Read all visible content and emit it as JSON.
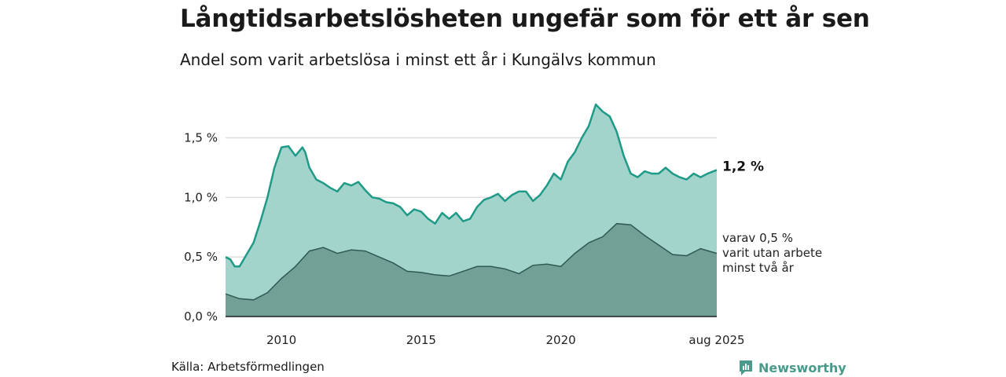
{
  "title": "Långtidsarbetslösheten ungefär som för ett år sen",
  "subtitle": "Andel som varit arbetslösa i minst ett år i Kungälvs kommun",
  "source": "Källa: Arbetsförmedlingen",
  "brand": "Newsworthy",
  "colors": {
    "area_main": "#a2d4cc",
    "line_main": "#1f9a87",
    "area_sub": "#72a096",
    "line_sub": "#2f5a50",
    "grid": "#dddddd"
  },
  "chart_data": {
    "type": "area",
    "xlim": [
      2008.0,
      2025.58
    ],
    "ylim": [
      0,
      1.8
    ],
    "yticks": [
      0,
      0.5,
      1.0,
      1.5
    ],
    "ytick_labels": [
      "0,0 %",
      "0,5 %",
      "1,0 %",
      "1,5 %"
    ],
    "xticks": [
      2010,
      2015,
      2020,
      2025.58
    ],
    "xtick_labels": [
      "2010",
      "2015",
      "2020",
      "aug 2025"
    ],
    "last_label": "1,2 %",
    "sub_label_lines": [
      "varav 0,5 %",
      "varit utan arbete",
      "minst två år"
    ],
    "series": [
      {
        "name": "minst ett år",
        "x": [
          2008.0,
          2008.17,
          2008.33,
          2008.5,
          2008.75,
          2009.0,
          2009.25,
          2009.5,
          2009.75,
          2010.0,
          2010.25,
          2010.5,
          2010.75,
          2010.85,
          2011.0,
          2011.25,
          2011.5,
          2011.75,
          2012.0,
          2012.25,
          2012.5,
          2012.75,
          2013.0,
          2013.25,
          2013.5,
          2013.75,
          2014.0,
          2014.25,
          2014.5,
          2014.75,
          2015.0,
          2015.25,
          2015.5,
          2015.75,
          2016.0,
          2016.25,
          2016.5,
          2016.75,
          2017.0,
          2017.25,
          2017.5,
          2017.75,
          2018.0,
          2018.25,
          2018.5,
          2018.75,
          2019.0,
          2019.25,
          2019.5,
          2019.75,
          2020.0,
          2020.25,
          2020.5,
          2020.75,
          2021.0,
          2021.25,
          2021.5,
          2021.75,
          2022.0,
          2022.25,
          2022.5,
          2022.75,
          2023.0,
          2023.25,
          2023.5,
          2023.75,
          2024.0,
          2024.25,
          2024.5,
          2024.75,
          2025.0,
          2025.25,
          2025.58
        ],
        "values": [
          0.5,
          0.48,
          0.42,
          0.42,
          0.52,
          0.62,
          0.8,
          1.0,
          1.25,
          1.42,
          1.43,
          1.35,
          1.42,
          1.38,
          1.25,
          1.15,
          1.12,
          1.08,
          1.05,
          1.12,
          1.1,
          1.13,
          1.06,
          1.0,
          0.99,
          0.96,
          0.95,
          0.92,
          0.85,
          0.9,
          0.88,
          0.82,
          0.78,
          0.87,
          0.82,
          0.87,
          0.8,
          0.82,
          0.92,
          0.98,
          1.0,
          1.03,
          0.97,
          1.02,
          1.05,
          1.05,
          0.97,
          1.02,
          1.1,
          1.2,
          1.15,
          1.3,
          1.38,
          1.5,
          1.6,
          1.78,
          1.72,
          1.68,
          1.55,
          1.35,
          1.2,
          1.17,
          1.22,
          1.2,
          1.2,
          1.25,
          1.2,
          1.17,
          1.15,
          1.2,
          1.17,
          1.2,
          1.23
        ]
      },
      {
        "name": "minst två år",
        "x": [
          2008.0,
          2008.5,
          2009.0,
          2009.5,
          2010.0,
          2010.5,
          2011.0,
          2011.5,
          2012.0,
          2012.5,
          2013.0,
          2013.5,
          2014.0,
          2014.5,
          2015.0,
          2015.5,
          2016.0,
          2016.5,
          2017.0,
          2017.5,
          2018.0,
          2018.5,
          2019.0,
          2019.5,
          2020.0,
          2020.5,
          2021.0,
          2021.5,
          2022.0,
          2022.5,
          2023.0,
          2023.5,
          2024.0,
          2024.5,
          2025.0,
          2025.58
        ],
        "values": [
          0.19,
          0.15,
          0.14,
          0.2,
          0.32,
          0.42,
          0.55,
          0.58,
          0.53,
          0.56,
          0.55,
          0.5,
          0.45,
          0.38,
          0.37,
          0.35,
          0.34,
          0.38,
          0.42,
          0.42,
          0.4,
          0.36,
          0.43,
          0.44,
          0.42,
          0.53,
          0.62,
          0.67,
          0.78,
          0.77,
          0.68,
          0.6,
          0.52,
          0.51,
          0.57,
          0.53
        ]
      }
    ]
  }
}
